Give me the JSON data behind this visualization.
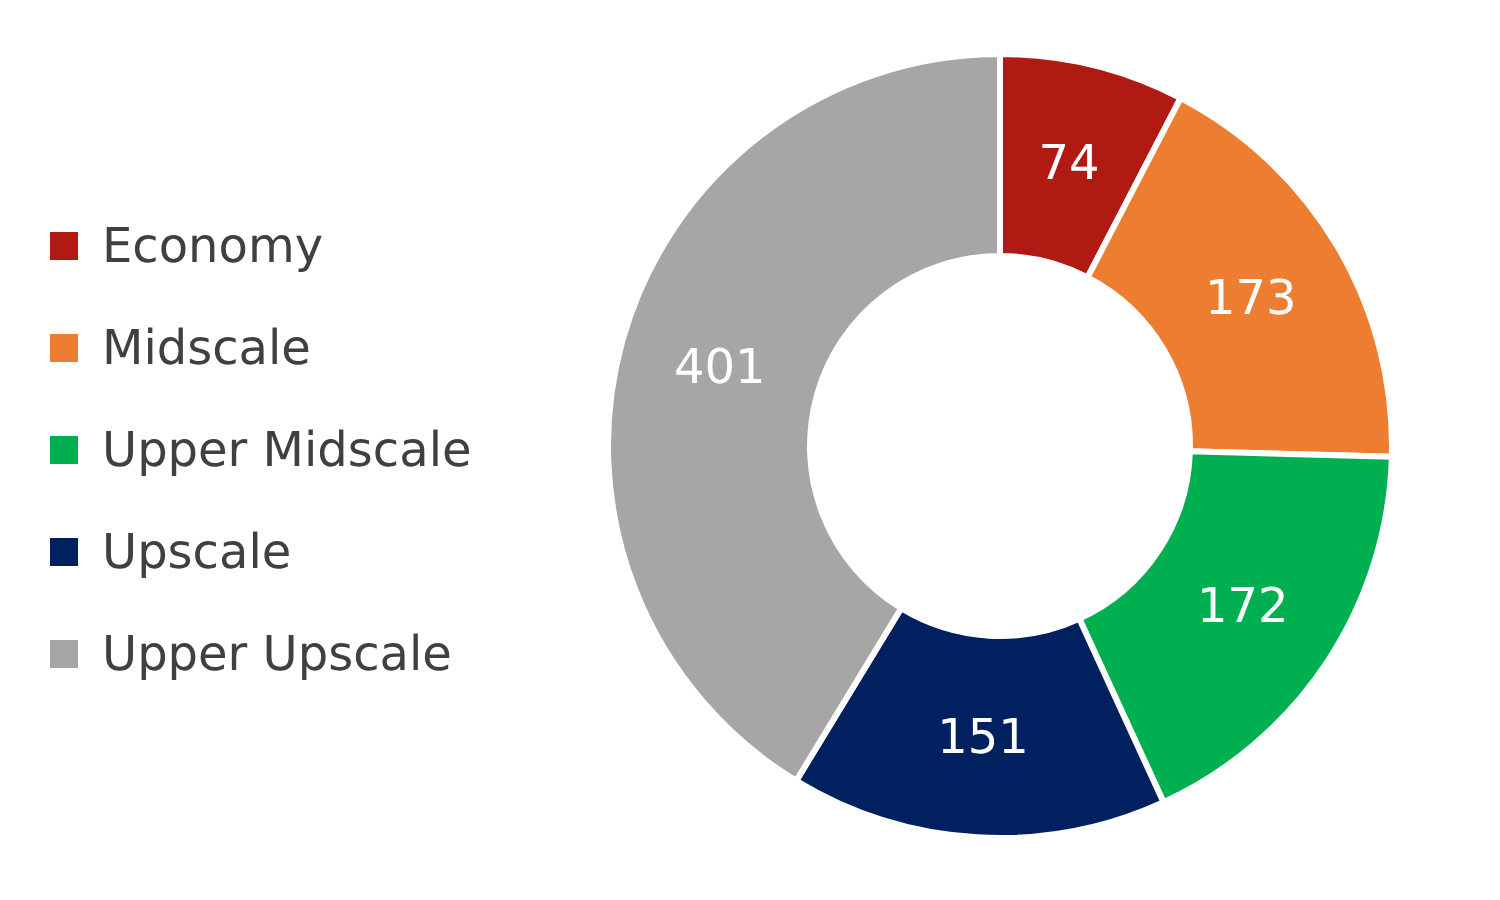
{
  "chart_data": {
    "type": "donut",
    "categories": [
      "Economy",
      "Midscale",
      "Upper Midscale",
      "Upscale",
      "Upper Upscale"
    ],
    "values": [
      74,
      173,
      172,
      151,
      401
    ],
    "colors": [
      "#b01a12",
      "#ed7d31",
      "#00b050",
      "#002060",
      "#a6a6a6"
    ],
    "data_labels": true,
    "legend": "left"
  }
}
